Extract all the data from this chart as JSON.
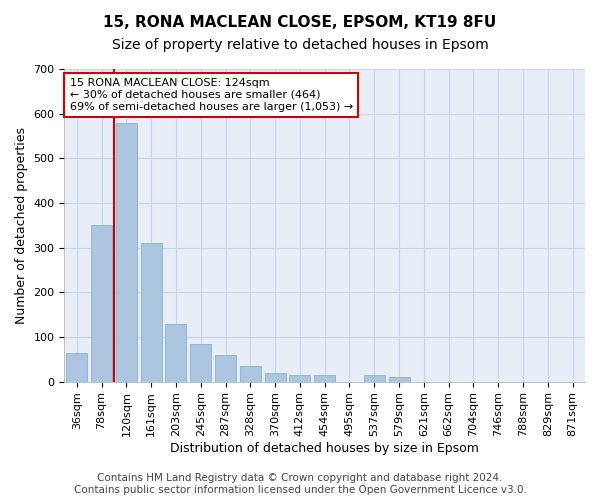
{
  "title1": "15, RONA MACLEAN CLOSE, EPSOM, KT19 8FU",
  "title2": "Size of property relative to detached houses in Epsom",
  "xlabel": "Distribution of detached houses by size in Epsom",
  "ylabel": "Number of detached properties",
  "categories": [
    "36sqm",
    "78sqm",
    "120sqm",
    "161sqm",
    "203sqm",
    "245sqm",
    "287sqm",
    "328sqm",
    "370sqm",
    "412sqm",
    "454sqm",
    "495sqm",
    "537sqm",
    "579sqm",
    "621sqm",
    "662sqm",
    "704sqm",
    "746sqm",
    "788sqm",
    "829sqm",
    "871sqm"
  ],
  "values": [
    65,
    350,
    580,
    310,
    130,
    85,
    60,
    35,
    20,
    15,
    15,
    0,
    15,
    10,
    0,
    0,
    0,
    0,
    0,
    0,
    0
  ],
  "bar_color": "#adc6e0",
  "bar_edge_color": "#7aaac8",
  "grid_color": "#c8d4e8",
  "background_color": "#e8eef8",
  "annotation_line1": "15 RONA MACLEAN CLOSE: 124sqm",
  "annotation_line2": "← 30% of detached houses are smaller (464)",
  "annotation_line3": "69% of semi-detached houses are larger (1,053) →",
  "annotation_box_color": "#ffffff",
  "annotation_box_edge": "#cc0000",
  "vline_color": "#cc0000",
  "vline_x_index": 2,
  "ylim": [
    0,
    700
  ],
  "yticks": [
    0,
    100,
    200,
    300,
    400,
    500,
    600,
    700
  ],
  "footer": "Contains HM Land Registry data © Crown copyright and database right 2024.\nContains public sector information licensed under the Open Government Licence v3.0.",
  "title1_fontsize": 11,
  "title2_fontsize": 10,
  "xlabel_fontsize": 9,
  "ylabel_fontsize": 9,
  "tick_fontsize": 8,
  "annotation_fontsize": 8,
  "footer_fontsize": 7.5
}
